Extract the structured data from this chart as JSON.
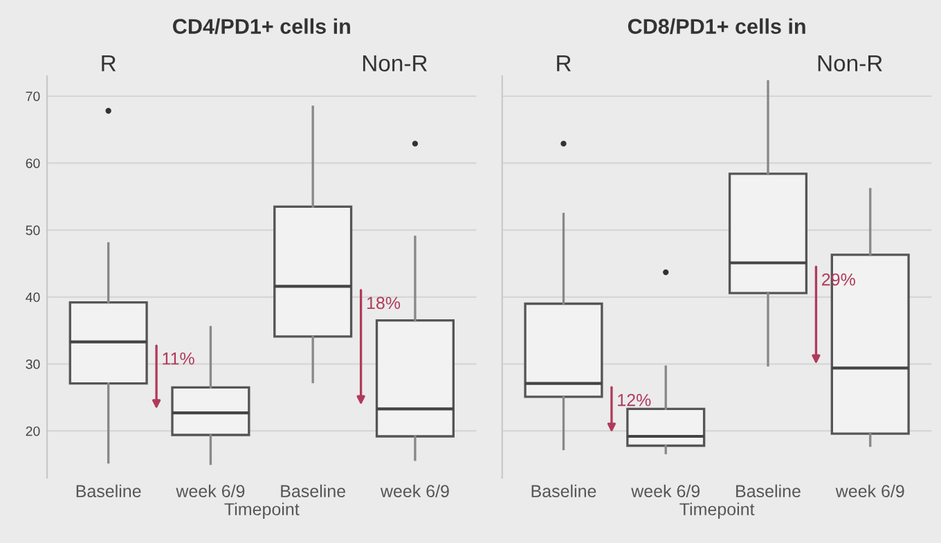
{
  "chart_data": [
    {
      "type": "box",
      "title": "CD4/PD1+ cells in",
      "xlabel": "Timepoint",
      "categories": [
        "Baseline",
        "week 6/9",
        "Baseline",
        "week 6/9"
      ],
      "boxes": [
        {
          "low": 15.3,
          "q1": 27.1,
          "median": 33.3,
          "q3": 39.2,
          "high": 48.0,
          "outliers": [
            67.8
          ]
        },
        {
          "low": 15.1,
          "q1": 19.4,
          "median": 22.7,
          "q3": 26.5,
          "high": 35.5
        },
        {
          "low": 27.3,
          "q1": 34.1,
          "median": 41.6,
          "q3": 53.5,
          "high": 68.4
        },
        {
          "low": 15.7,
          "q1": 19.2,
          "median": 23.3,
          "q3": 36.5,
          "high": 49.0,
          "outliers": [
            62.9
          ]
        }
      ],
      "annotations": [
        "R",
        "Non-R",
        "11%",
        "18%"
      ],
      "ylim": [
        13,
        73
      ],
      "yticks": [
        20,
        30,
        40,
        50,
        60,
        70
      ],
      "grid": "y"
    },
    {
      "type": "box",
      "title": "CD8/PD1+ cells in",
      "xlabel": "Timepoint",
      "categories": [
        "Baseline",
        "week 6/9",
        "Baseline",
        "week 6/9"
      ],
      "boxes": [
        {
          "low": 17.3,
          "q1": 25.1,
          "median": 27.1,
          "q3": 39.0,
          "high": 52.4,
          "outliers": [
            62.9
          ]
        },
        {
          "low": 16.7,
          "q1": 17.8,
          "median": 19.2,
          "q3": 23.3,
          "high": 29.6,
          "outliers": [
            43.7
          ]
        },
        {
          "low": 29.8,
          "q1": 40.6,
          "median": 45.1,
          "q3": 58.4,
          "high": 72.2
        },
        {
          "low": 17.8,
          "q1": 19.6,
          "median": 29.4,
          "q3": 46.3,
          "high": 56.1
        }
      ],
      "annotations": [
        "R",
        "Non-R",
        "12%",
        "29%"
      ],
      "ylim": [
        13,
        73
      ],
      "yticks": [
        20,
        30,
        40,
        50,
        60,
        70
      ],
      "grid": "y",
      "tick_labels": "x"
    }
  ]
}
